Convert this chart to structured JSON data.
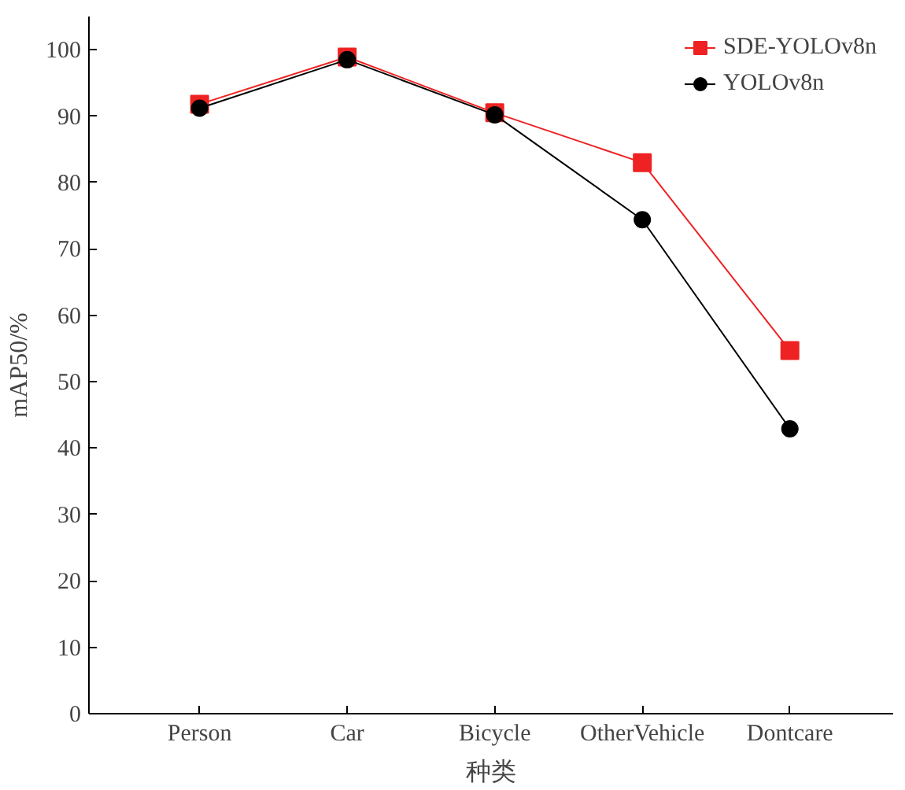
{
  "chart_data": {
    "type": "line",
    "xlabel": "种类",
    "ylabel": "mAP50/%",
    "categories": [
      "Person",
      "Car",
      "Bicycle",
      "OtherVehicle",
      "Dontcare"
    ],
    "series": [
      {
        "name": "SDE-YOLOv8n",
        "color": "#ee2222",
        "marker": "square",
        "values": [
          91.8,
          98.9,
          90.5,
          83.0,
          54.7
        ]
      },
      {
        "name": "YOLOv8n",
        "color": "#000000",
        "marker": "circle",
        "values": [
          91.2,
          98.5,
          90.2,
          74.4,
          42.9
        ]
      }
    ],
    "ylim": [
      0,
      105
    ],
    "yticks": [
      0,
      10,
      20,
      30,
      40,
      50,
      60,
      70,
      80,
      90,
      100
    ],
    "grid": false,
    "legend": "top right",
    "line_style": "solid"
  }
}
